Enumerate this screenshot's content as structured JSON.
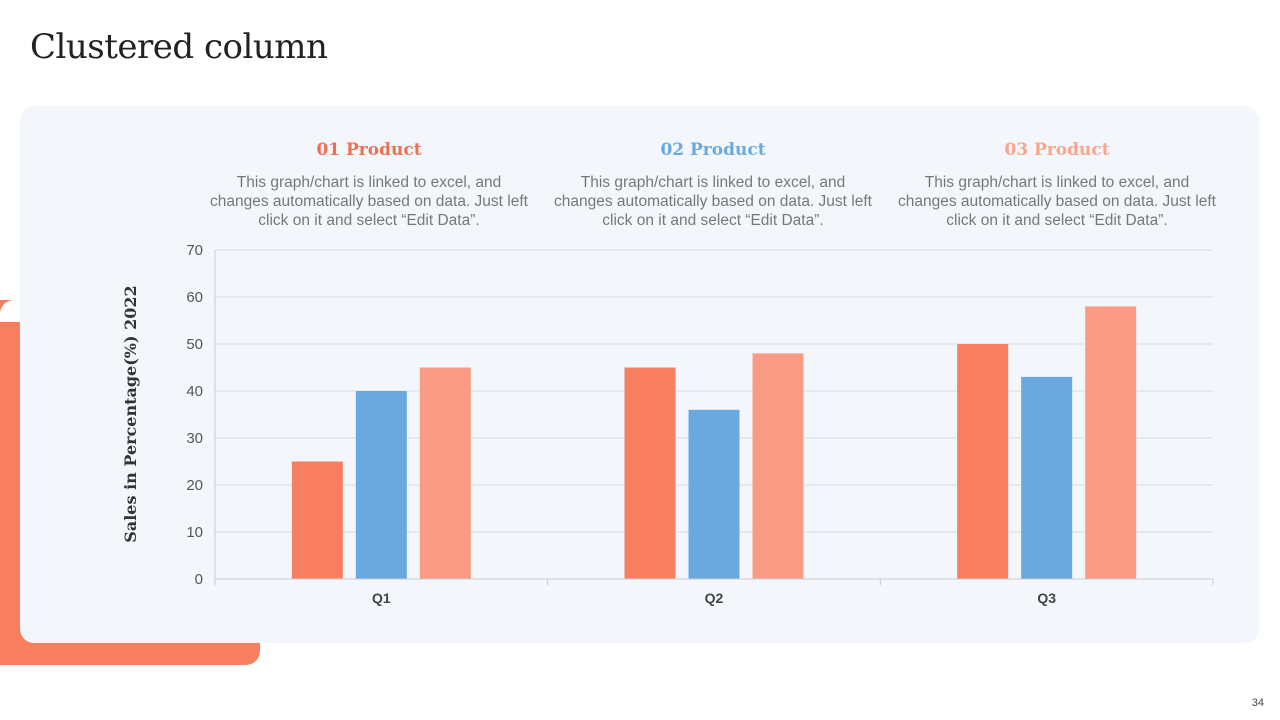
{
  "slide": {
    "title": "Clustered column",
    "page_number": "34"
  },
  "colors": {
    "accent": "#f77f5f",
    "panel": "#f3f7fb",
    "series": [
      "#f77f5f",
      "#6aa9e0",
      "#fa9c85"
    ]
  },
  "products": [
    {
      "title": "01 Product",
      "color": "#f06e52",
      "description": "This graph/chart is linked to excel, and changes automatically based on data. Just left click on it and select “Edit Data”."
    },
    {
      "title": "02 Product",
      "color": "#6aa9e0",
      "description": "This graph/chart is linked to excel, and changes automatically based on data. Just left click on it and select “Edit Data”."
    },
    {
      "title": "03 Product",
      "color": "#f9a48d",
      "description": "This graph/chart is linked to excel, and changes automatically based on data. Just left click on it and select “Edit Data”."
    }
  ],
  "chart_data": {
    "type": "bar",
    "title": "",
    "xlabel": "",
    "ylabel": "Sales in Percentage(%) 2022",
    "categories": [
      "Q1",
      "Q2",
      "Q3"
    ],
    "series": [
      {
        "name": "01 Product",
        "values": [
          25,
          45,
          50
        ]
      },
      {
        "name": "02 Product",
        "values": [
          40,
          36,
          43
        ]
      },
      {
        "name": "03 Product",
        "values": [
          45,
          48,
          58
        ]
      }
    ],
    "ylim": [
      0,
      70
    ],
    "yticks": [
      0,
      10,
      20,
      30,
      40,
      50,
      60,
      70
    ],
    "grid": true,
    "legend": "none"
  }
}
